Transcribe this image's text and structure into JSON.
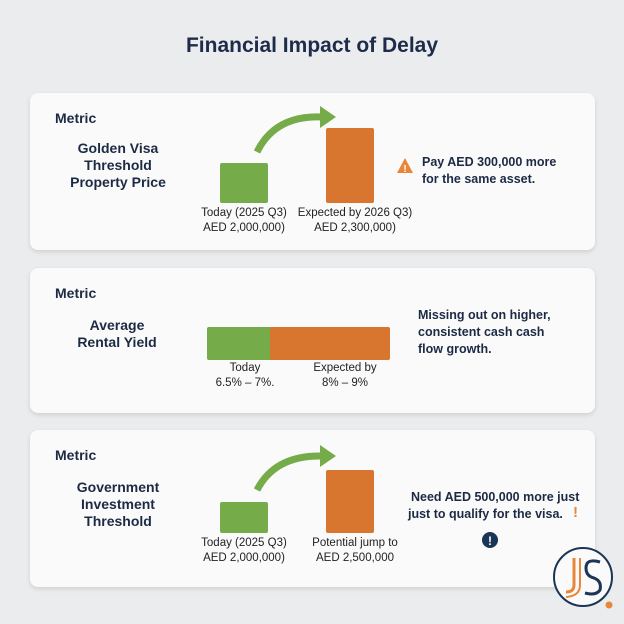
{
  "title": "Financial Impact of Delay",
  "colors": {
    "green": "#76ab49",
    "orange": "#d8752f",
    "navy": "#1a3556"
  },
  "cards": [
    {
      "metric": "Metric",
      "label": [
        "Golden Visa",
        "Threshold",
        "Property Price"
      ],
      "bars": [
        {
          "caption": [
            "Today (2025 Q3)",
            "AED 2,000,000)"
          ]
        },
        {
          "caption": [
            "Expected by 2026 Q3)",
            "AED 2,300,000)"
          ]
        }
      ],
      "note": [
        "Pay AED 300,000 more",
        "for the same asset."
      ],
      "icon": "warning-icon"
    },
    {
      "metric": "Metric",
      "label": [
        "Average",
        "Rental Yield"
      ],
      "bars": [
        {
          "caption": [
            "Today",
            "6.5% – 7%."
          ]
        },
        {
          "caption": [
            "Expected by",
            "8% – 9%"
          ]
        }
      ],
      "note": [
        "Missing out on higher,",
        "consistent cash cash",
        "flow growth."
      ]
    },
    {
      "metric": "Metric",
      "label": [
        "Government",
        "Investment",
        "Threshold"
      ],
      "bars": [
        {
          "caption": [
            "Today (2025 Q3)",
            "AED 2,000,000)"
          ]
        },
        {
          "caption": [
            "Potential jump to",
            "AED 2,500,000"
          ]
        }
      ],
      "note": [
        "Need AED 500,000 more just",
        "just to qualify for the visa."
      ],
      "icon": "exclamation-icon"
    }
  ],
  "logo": "JS"
}
